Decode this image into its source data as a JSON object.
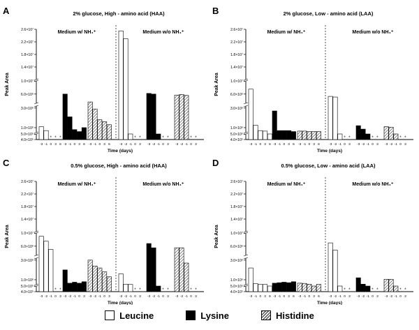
{
  "x_label": "Time (days)",
  "y_label": "Peak Area",
  "legend": [
    {
      "key": "leucine",
      "name": "Leucine",
      "style": "white"
    },
    {
      "key": "lysine",
      "name": "Lysine",
      "style": "black"
    },
    {
      "key": "histidine",
      "name": "Histidine",
      "style": "hatched"
    }
  ],
  "chart_data": [
    {
      "type": "bar",
      "panel_letter": "A",
      "title": "2% glucose, High - amino acid (HAA)",
      "left_group": "Medium w/ NH₄⁺",
      "right_group": "Medium w/o NH₄⁺",
      "y_ticks": [
        "4.0×10⁵",
        "5.0×10⁵",
        "1.0×10⁶",
        "3.0×10⁶",
        "6.0×10⁶",
        "1.0×10⁷",
        "1.4×10⁷",
        "1.8×10⁷",
        "2.2×10⁷",
        "2.6×10⁷"
      ],
      "left_days": [
        "-3",
        "-1",
        "0",
        "3",
        "6"
      ],
      "right_days": [
        "-3",
        "-2",
        "-1",
        "0",
        "3"
      ],
      "left": {
        "leucine": [
          1100000.0,
          700000.0,
          null,
          null,
          null
        ],
        "lysine": [
          6000000.0,
          2100000.0,
          800000.0,
          600000.0,
          1000000.0
        ],
        "histidine": [
          3600000.0,
          2900000.0,
          1800000.0,
          1600000.0,
          1300000.0
        ]
      },
      "right": {
        "leucine": [
          25500000.0,
          23000000.0,
          500000.0,
          null,
          null
        ],
        "lysine": [
          6200000.0,
          6000000.0,
          500000.0,
          null,
          null
        ],
        "histidine": [
          5700000.0,
          5900000.0,
          5600000.0,
          null,
          null
        ]
      }
    },
    {
      "type": "bar",
      "panel_letter": "B",
      "title": "2% glucose, Low - amino acid (LAA)",
      "left_group": "Medium w/ NH₄⁺",
      "right_group": "Medium w/o NH₄⁺",
      "y_ticks": [
        "4.0×10⁵",
        "5.0×10⁵",
        "1.0×10⁶",
        "3.0×10⁶",
        "6.0×10⁶",
        "1.0×10⁷",
        "1.4×10⁷",
        "1.8×10⁷",
        "2.2×10⁷",
        "2.6×10⁷"
      ],
      "left_days": [
        "-3",
        "-1",
        "0",
        "3",
        "6"
      ],
      "right_days": [
        "-3",
        "-2",
        "-1",
        "0",
        "3"
      ],
      "left": {
        "leucine": [
          7500000.0,
          1250000.0,
          700000.0,
          650000.0,
          500000.0
        ],
        "lysine": [
          2700000.0,
          700000.0,
          700000.0,
          700000.0,
          600000.0
        ],
        "histidine": [
          650000.0,
          650000.0,
          600000.0,
          600000.0,
          600000.0
        ]
      },
      "right": {
        "leucine": [
          5300000.0,
          5100000.0,
          500000.0,
          null,
          null
        ],
        "lysine": [
          1200000.0,
          850000.0,
          500000.0,
          null,
          null
        ],
        "histidine": [
          1100000.0,
          1050000.0,
          500000.0,
          null,
          null
        ]
      }
    },
    {
      "type": "bar",
      "panel_letter": "C",
      "title": "0.5% glucose, High - amino acid (HAA)",
      "left_group": "Medium w/ NH₄⁺",
      "right_group": "Medium w/o NH₄⁺",
      "y_ticks": [
        "4.0×10⁵",
        "5.0×10⁵",
        "1.0×10⁶",
        "3.0×10⁶",
        "6.0×10⁶",
        "1.0×10⁷",
        "1.4×10⁷",
        "1.8×10⁷",
        "2.2×10⁷",
        "2.6×10⁷"
      ],
      "left_days": [
        "-3",
        "-2",
        "-1",
        "0",
        "3"
      ],
      "right_days": [
        "-3",
        "-2",
        "-1",
        "0",
        "3"
      ],
      "left": {
        "leucine": [
          9000000.0,
          7500000.0,
          5000000.0,
          null,
          null
        ],
        "lysine": [
          2000000.0,
          650000.0,
          750000.0,
          650000.0,
          800000.0
        ],
        "histidine": [
          3000000.0,
          2400000.0,
          2200000.0,
          1800000.0,
          1300000.0
        ]
      },
      "right": {
        "leucine": [
          1600000.0,
          550000.0,
          520000.0,
          null,
          null
        ],
        "lysine": [
          6800000.0,
          5500000.0,
          500000.0,
          null,
          null
        ],
        "histidine": [
          5500000.0,
          5500000.0,
          2700000.0,
          null,
          null
        ]
      }
    },
    {
      "type": "bar",
      "panel_letter": "D",
      "title": "0.5% glucose, Low - amino acid (LAA)",
      "left_group": "Medium w/ NH₄⁺",
      "right_group": "Medium w/o NH₄⁺",
      "y_ticks": [
        "4.0×10⁵",
        "5.0×10⁵",
        "1.0×10⁶",
        "3.0×10⁶",
        "6.0×10⁶",
        "1.0×10⁷",
        "1.4×10⁷",
        "1.8×10⁷",
        "2.2×10⁷",
        "2.6×10⁷"
      ],
      "left_days": [
        "-3",
        "-1",
        "0",
        "3",
        "6"
      ],
      "right_days": [
        "-3",
        "-2",
        "-1",
        "0",
        "3"
      ],
      "left": {
        "leucine": [
          2200000.0,
          600000.0,
          530000.0,
          520000.0,
          500000.0
        ],
        "lysine": [
          650000.0,
          700000.0,
          750000.0,
          700000.0,
          800000.0
        ],
        "histidine": [
          650000.0,
          630000.0,
          550000.0,
          500000.0,
          530000.0
        ]
      },
      "right": {
        "leucine": [
          7000000.0,
          4800000.0,
          500000.0,
          null,
          null
        ],
        "lysine": [
          1200000.0,
          550000.0,
          500000.0,
          null,
          null
        ],
        "histidine": [
          1050000.0,
          1050000.0,
          500000.0,
          null,
          null
        ]
      }
    }
  ]
}
